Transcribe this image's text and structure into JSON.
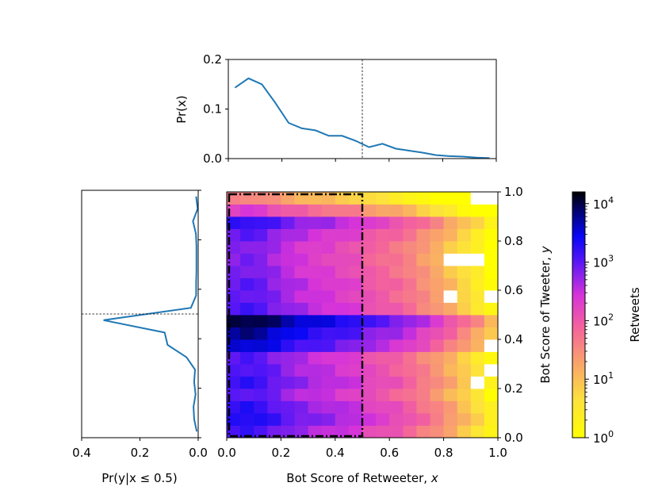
{
  "chart_data": [
    {
      "type": "line",
      "id": "marginal-x",
      "ylabel": "Pr(x)",
      "xlim": [
        0,
        1
      ],
      "ylim": [
        0,
        0.2
      ],
      "yticks": [
        "0.0",
        "0.1",
        "0.2"
      ],
      "threshold_x": 0.5,
      "x": [
        0.025,
        0.075,
        0.125,
        0.175,
        0.225,
        0.275,
        0.325,
        0.375,
        0.425,
        0.475,
        0.525,
        0.575,
        0.625,
        0.675,
        0.725,
        0.775,
        0.825,
        0.875,
        0.925,
        0.975
      ],
      "values": [
        0.143,
        0.162,
        0.15,
        0.113,
        0.072,
        0.061,
        0.057,
        0.046,
        0.046,
        0.036,
        0.023,
        0.03,
        0.02,
        0.016,
        0.012,
        0.007,
        0.005,
        0.004,
        0.002,
        0.001
      ]
    },
    {
      "type": "line",
      "id": "marginal-y",
      "xlabel": "Pr(y|x ≤ 0.5)",
      "xlim": [
        0.4,
        0.0
      ],
      "ylim": [
        0,
        1
      ],
      "xticks": [
        "0.4",
        "0.2",
        "0.0"
      ],
      "threshold_y": 0.5,
      "y": [
        0.025,
        0.075,
        0.125,
        0.175,
        0.225,
        0.275,
        0.325,
        0.375,
        0.425,
        0.475,
        0.525,
        0.575,
        0.625,
        0.675,
        0.725,
        0.775,
        0.825,
        0.875,
        0.925,
        0.975
      ],
      "values": [
        0.005,
        0.014,
        0.016,
        0.009,
        0.014,
        0.011,
        0.04,
        0.105,
        0.115,
        0.325,
        0.025,
        0.007,
        0.007,
        0.006,
        0.006,
        0.006,
        0.008,
        0.018,
        0.002,
        0.007
      ]
    },
    {
      "type": "heatmap",
      "id": "joint",
      "xlabel": "Bot Score of Retweeter, x",
      "ylabel": "Bot Score of Tweeter, y",
      "xlim": [
        0,
        1
      ],
      "ylim": [
        0,
        1
      ],
      "xticks": [
        "0.0",
        "0.2",
        "0.4",
        "0.6",
        "0.8",
        "1.0"
      ],
      "yticks": [
        "0.0",
        "0.2",
        "0.4",
        "0.6",
        "0.8",
        "1.0"
      ],
      "bins": 20,
      "highlight_region": {
        "x": [
          0,
          0.5
        ],
        "y": [
          0,
          1
        ]
      },
      "colorbar_label": "Retweets",
      "colorbar_ticks": [
        "10",
        "10",
        "10",
        "10",
        "10"
      ],
      "colorbar_exponents": [
        "0",
        "1",
        "2",
        "3",
        "4"
      ],
      "log_range": [
        0,
        4.2
      ],
      "row_base": [
        3.1,
        3.3,
        3.2,
        3.0,
        3.15,
        3.05,
        3.0,
        3.55,
        3.75,
        4.0,
        3.05,
        2.95,
        2.95,
        2.85,
        2.8,
        2.8,
        2.95,
        3.2,
        2.3,
        1.55
      ],
      "col_offset": [
        0.0,
        0.05,
        0.0,
        -0.15,
        -0.3,
        -0.4,
        -0.5,
        -0.55,
        -0.65,
        -0.7,
        -0.9,
        -1.0,
        -1.1,
        -1.25,
        -1.45,
        -1.65,
        -1.9,
        -2.2,
        -2.5,
        -2.9
      ],
      "empty_cells": [
        [
          11,
          19
        ],
        [
          14,
          17
        ],
        [
          14,
          18
        ],
        [
          14,
          16
        ],
        [
          19,
          18
        ],
        [
          19,
          19
        ],
        [
          4,
          18
        ],
        [
          7,
          19
        ],
        [
          5,
          19
        ],
        [
          11,
          16
        ]
      ]
    }
  ]
}
